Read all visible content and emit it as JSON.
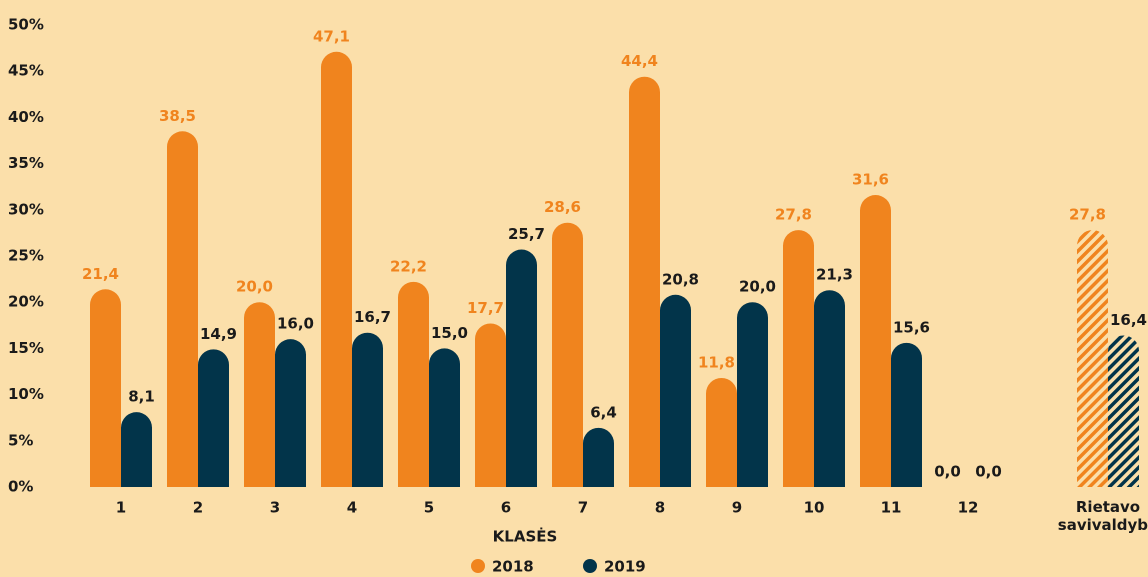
{
  "chart_data": {
    "type": "bar",
    "categories": [
      "1",
      "2",
      "3",
      "4",
      "5",
      "6",
      "7",
      "8",
      "9",
      "10",
      "11",
      "12",
      "Rietavo savivaldybė"
    ],
    "series": [
      {
        "name": "2018",
        "color": "#f0841e",
        "values": [
          21.4,
          38.5,
          20.0,
          47.1,
          22.2,
          17.7,
          28.6,
          44.4,
          11.8,
          27.8,
          31.6,
          0.0,
          27.8
        ],
        "value_labels": [
          "21,4",
          "38,5",
          "20,0",
          "47,1",
          "22,2",
          "17,7",
          "28,6",
          "44,4",
          "11,8",
          "27,8",
          "31,6",
          "0,0",
          "27,8"
        ]
      },
      {
        "name": "2019",
        "color": "#02344a",
        "values": [
          8.1,
          14.9,
          16.0,
          16.7,
          15.0,
          25.7,
          6.4,
          20.8,
          20.0,
          21.3,
          15.6,
          0.0,
          16.4
        ],
        "value_labels": [
          "8,1",
          "14,9",
          "16,0",
          "16,7",
          "15,0",
          "25,7",
          "6,4",
          "20,8",
          "20,0",
          "21,3",
          "15,6",
          "0,0",
          "16,4"
        ]
      }
    ],
    "x_label": "KLASĖS",
    "ylim": [
      0,
      50
    ],
    "yticks": [
      {
        "value": 0,
        "label": "0%"
      },
      {
        "value": 5,
        "label": "5%"
      },
      {
        "value": 10,
        "label": "10%"
      },
      {
        "value": 15,
        "label": "15%"
      },
      {
        "value": 20,
        "label": "20%"
      },
      {
        "value": 25,
        "label": "25%"
      },
      {
        "value": 30,
        "label": "30%"
      },
      {
        "value": 35,
        "label": "35%"
      },
      {
        "value": 40,
        "label": "40%"
      },
      {
        "value": 45,
        "label": "45%"
      },
      {
        "value": 50,
        "label": "50%"
      }
    ],
    "grid": false,
    "legend": "bottom"
  }
}
